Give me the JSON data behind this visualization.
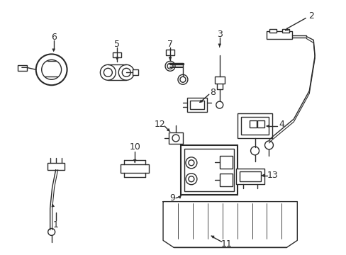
{
  "background_color": "#ffffff",
  "line_color": "#2a2a2a",
  "label_color": "#111111",
  "figsize": [
    4.89,
    3.6
  ],
  "dpi": 100,
  "label_fontsize": 9
}
